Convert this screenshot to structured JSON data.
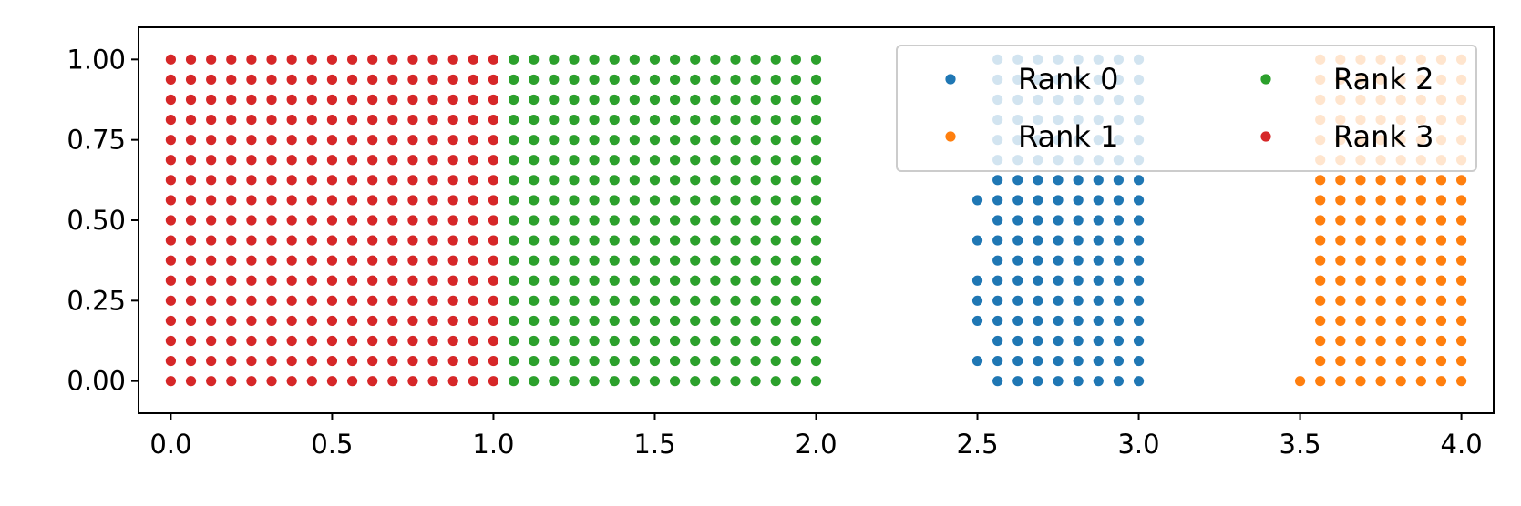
{
  "chart_data": {
    "type": "scatter",
    "title": "",
    "xlabel": "",
    "ylabel": "",
    "xlim": [
      -0.1,
      4.1
    ],
    "ylim": [
      -0.1,
      1.1
    ],
    "xticks": [
      "0.0",
      "0.5",
      "1.0",
      "1.5",
      "2.0",
      "2.5",
      "3.0",
      "3.5",
      "4.0"
    ],
    "yticks": [
      "0.00",
      "0.25",
      "0.50",
      "0.75",
      "1.00"
    ],
    "grid": false,
    "legend": {
      "placement": "upper-right",
      "columns": 2
    },
    "grid_step": 0.0625,
    "series": [
      {
        "name": "Rank 0",
        "color": "#1f77b4",
        "x_range": [
          2.5625,
          3.0
        ],
        "y_range": [
          0.0,
          1.0
        ],
        "extra_x": 2.5,
        "extra_y": [
          0.0625,
          0.1875,
          0.25,
          0.3125,
          0.4375,
          0.5625
        ]
      },
      {
        "name": "Rank 1",
        "color": "#ff7f0e",
        "x_range": [
          3.5625,
          4.0
        ],
        "y_range": [
          0.0,
          1.0
        ],
        "extra_x": 3.5,
        "extra_y": [
          0.0
        ]
      },
      {
        "name": "Rank 2",
        "color": "#2ca02c",
        "x_range": [
          1.0625,
          2.0
        ],
        "y_range": [
          0.0,
          1.0
        ],
        "extra_x": null,
        "extra_y": []
      },
      {
        "name": "Rank 3",
        "color": "#d62728",
        "x_range": [
          0.0,
          1.0
        ],
        "y_range": [
          0.0,
          1.0
        ],
        "extra_x": null,
        "extra_y": []
      }
    ],
    "draw_order": [
      "Rank 0",
      "Rank 1",
      "Rank 2",
      "Rank 3"
    ]
  }
}
